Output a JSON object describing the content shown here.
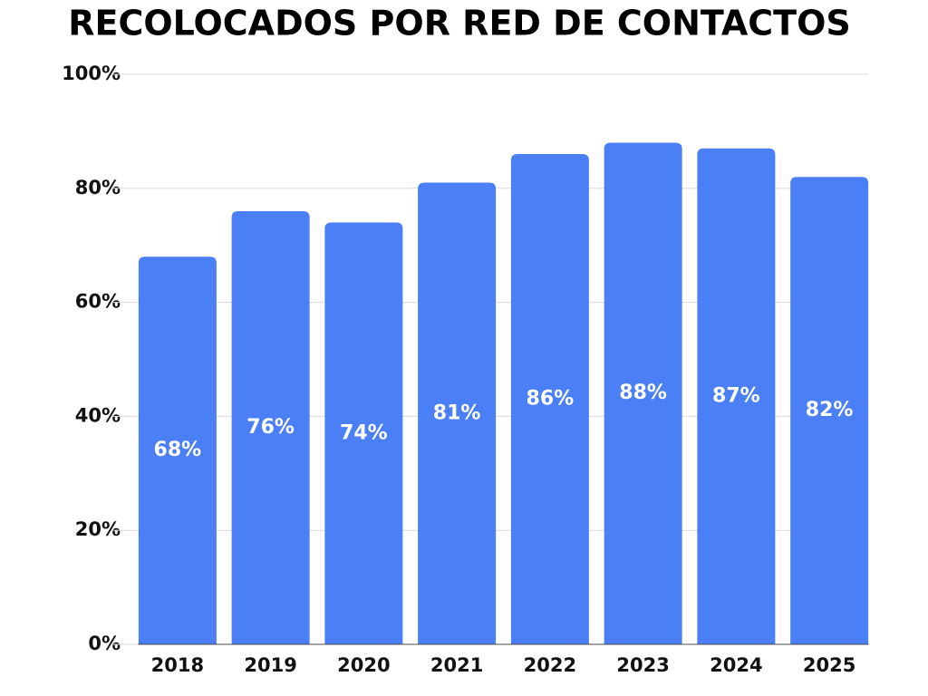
{
  "chart_data": {
    "type": "bar",
    "title": "RECOLOCADOS POR RED DE CONTACTOS",
    "categories": [
      "2018",
      "2019",
      "2020",
      "2021",
      "2022",
      "2023",
      "2024",
      "2025"
    ],
    "values": [
      68,
      76,
      74,
      81,
      86,
      88,
      87,
      82
    ],
    "value_labels": [
      "68%",
      "76%",
      "74%",
      "81%",
      "86%",
      "88%",
      "87%",
      "82%"
    ],
    "color": "#4a7ff5",
    "ylim": [
      0,
      100
    ],
    "yticks": [
      {
        "value": 0,
        "label": "0%"
      },
      {
        "value": 20,
        "label": "20%"
      },
      {
        "value": 40,
        "label": "40%"
      },
      {
        "value": 60,
        "label": "60%"
      },
      {
        "value": 80,
        "label": "80%"
      },
      {
        "value": 100,
        "label": "100%"
      }
    ],
    "grid": true
  }
}
